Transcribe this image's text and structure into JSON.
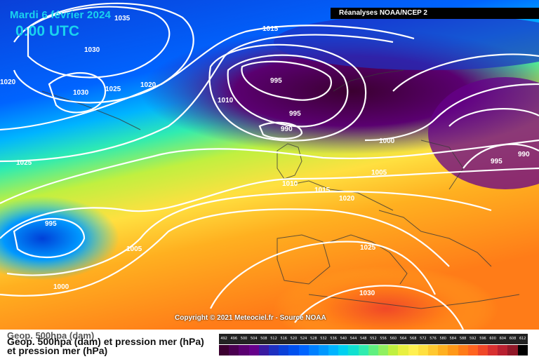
{
  "header": {
    "date": "Mardi 6 février 2024",
    "time": "0:00 UTC",
    "source": "Réanalyses NOAA/NCEP 2"
  },
  "map": {
    "copyright": "Copyright © 2021 Meteociel.fr - Source NOAA",
    "isobars": [
      {
        "label": "1035",
        "hpa": 1035
      },
      {
        "label": "1030",
        "hpa": 1030
      },
      {
        "label": "1020",
        "hpa": 1020
      },
      {
        "label": "1030",
        "hpa": 1030
      },
      {
        "label": "1025",
        "hpa": 1025
      },
      {
        "label": "1020",
        "hpa": 1020
      },
      {
        "label": "1015",
        "hpa": 1015
      },
      {
        "label": "995",
        "hpa": 995
      },
      {
        "label": "1010",
        "hpa": 1010
      },
      {
        "label": "995",
        "hpa": 995
      },
      {
        "label": "990",
        "hpa": 990
      },
      {
        "label": "1000",
        "hpa": 1000
      },
      {
        "label": "990",
        "hpa": 990
      },
      {
        "label": "995",
        "hpa": 995
      },
      {
        "label": "1005",
        "hpa": 1005
      },
      {
        "label": "1025",
        "hpa": 1025
      },
      {
        "label": "1010",
        "hpa": 1010
      },
      {
        "label": "1015",
        "hpa": 1015
      },
      {
        "label": "1020",
        "hpa": 1020
      },
      {
        "label": "995",
        "hpa": 995
      },
      {
        "label": "1005",
        "hpa": 1005
      },
      {
        "label": "1025",
        "hpa": 1025
      },
      {
        "label": "1000",
        "hpa": 1000
      },
      {
        "label": "1030",
        "hpa": 1030
      }
    ]
  },
  "footer": {
    "caption_top": "Geop. 500hpa (dam)",
    "caption_main": "Geop. 500hpa (dam) et pression mer (hPa)",
    "caption_bottom": "et pression mer (hPa)"
  },
  "legend": {
    "ticks": [
      "492",
      "496",
      "500",
      "504",
      "508",
      "512",
      "516",
      "520",
      "524",
      "528",
      "532",
      "536",
      "540",
      "544",
      "548",
      "552",
      "556",
      "560",
      "564",
      "568",
      "572",
      "576",
      "580",
      "584",
      "588",
      "592",
      "596",
      "600",
      "604",
      "608",
      "612"
    ],
    "colors": [
      "#3b0030",
      "#4a0050",
      "#5a0070",
      "#66008a",
      "#3a1aa0",
      "#1e30c0",
      "#0a40d8",
      "#0050ee",
      "#0064ff",
      "#0080ff",
      "#0098ff",
      "#00b4ff",
      "#00d0f0",
      "#10e0d0",
      "#30ecb0",
      "#60f080",
      "#90f060",
      "#c0f040",
      "#e8f040",
      "#fff050",
      "#ffe040",
      "#ffc830",
      "#ffb020",
      "#ff9818",
      "#ff7c18",
      "#ff6420",
      "#f04828",
      "#d83030",
      "#b82030",
      "#901828",
      "#000000"
    ]
  }
}
